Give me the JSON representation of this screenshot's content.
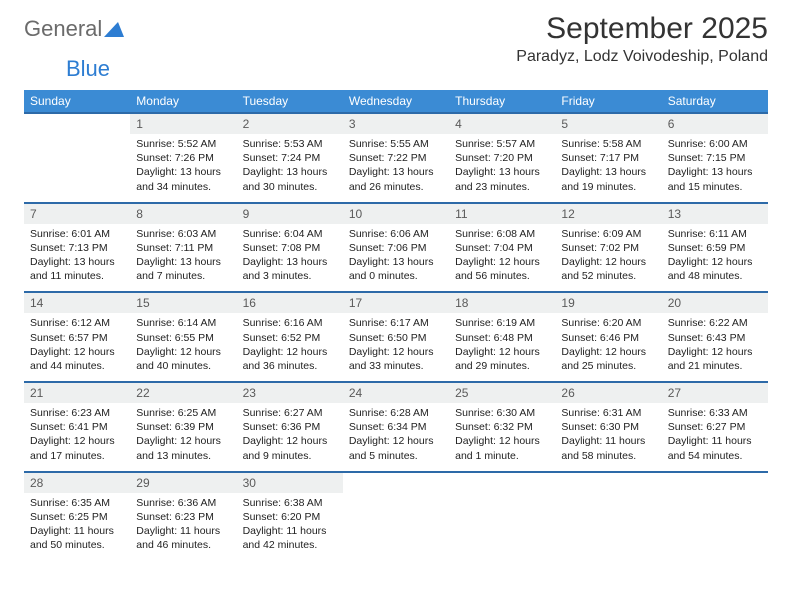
{
  "logo": {
    "text1": "General",
    "text2": "Blue"
  },
  "header": {
    "month": "September 2025",
    "location": "Paradyz, Lodz Voivodeship, Poland"
  },
  "columns": [
    "Sunday",
    "Monday",
    "Tuesday",
    "Wednesday",
    "Thursday",
    "Friday",
    "Saturday"
  ],
  "colors": {
    "header_bg": "#3b8bd4",
    "header_text": "#ffffff",
    "row_border": "#2d6aa8",
    "daynum_bg": "#eef0f0",
    "daynum_text": "#5a5a5a",
    "body_text": "#222222",
    "logo_gray": "#6b6b6b",
    "logo_blue": "#2d7dd2"
  },
  "weeks": [
    [
      {
        "empty": true
      },
      {
        "n": "1",
        "sunrise": "Sunrise: 5:52 AM",
        "sunset": "Sunset: 7:26 PM",
        "daylight": "Daylight: 13 hours and 34 minutes."
      },
      {
        "n": "2",
        "sunrise": "Sunrise: 5:53 AM",
        "sunset": "Sunset: 7:24 PM",
        "daylight": "Daylight: 13 hours and 30 minutes."
      },
      {
        "n": "3",
        "sunrise": "Sunrise: 5:55 AM",
        "sunset": "Sunset: 7:22 PM",
        "daylight": "Daylight: 13 hours and 26 minutes."
      },
      {
        "n": "4",
        "sunrise": "Sunrise: 5:57 AM",
        "sunset": "Sunset: 7:20 PM",
        "daylight": "Daylight: 13 hours and 23 minutes."
      },
      {
        "n": "5",
        "sunrise": "Sunrise: 5:58 AM",
        "sunset": "Sunset: 7:17 PM",
        "daylight": "Daylight: 13 hours and 19 minutes."
      },
      {
        "n": "6",
        "sunrise": "Sunrise: 6:00 AM",
        "sunset": "Sunset: 7:15 PM",
        "daylight": "Daylight: 13 hours and 15 minutes."
      }
    ],
    [
      {
        "n": "7",
        "sunrise": "Sunrise: 6:01 AM",
        "sunset": "Sunset: 7:13 PM",
        "daylight": "Daylight: 13 hours and 11 minutes."
      },
      {
        "n": "8",
        "sunrise": "Sunrise: 6:03 AM",
        "sunset": "Sunset: 7:11 PM",
        "daylight": "Daylight: 13 hours and 7 minutes."
      },
      {
        "n": "9",
        "sunrise": "Sunrise: 6:04 AM",
        "sunset": "Sunset: 7:08 PM",
        "daylight": "Daylight: 13 hours and 3 minutes."
      },
      {
        "n": "10",
        "sunrise": "Sunrise: 6:06 AM",
        "sunset": "Sunset: 7:06 PM",
        "daylight": "Daylight: 13 hours and 0 minutes."
      },
      {
        "n": "11",
        "sunrise": "Sunrise: 6:08 AM",
        "sunset": "Sunset: 7:04 PM",
        "daylight": "Daylight: 12 hours and 56 minutes."
      },
      {
        "n": "12",
        "sunrise": "Sunrise: 6:09 AM",
        "sunset": "Sunset: 7:02 PM",
        "daylight": "Daylight: 12 hours and 52 minutes."
      },
      {
        "n": "13",
        "sunrise": "Sunrise: 6:11 AM",
        "sunset": "Sunset: 6:59 PM",
        "daylight": "Daylight: 12 hours and 48 minutes."
      }
    ],
    [
      {
        "n": "14",
        "sunrise": "Sunrise: 6:12 AM",
        "sunset": "Sunset: 6:57 PM",
        "daylight": "Daylight: 12 hours and 44 minutes."
      },
      {
        "n": "15",
        "sunrise": "Sunrise: 6:14 AM",
        "sunset": "Sunset: 6:55 PM",
        "daylight": "Daylight: 12 hours and 40 minutes."
      },
      {
        "n": "16",
        "sunrise": "Sunrise: 6:16 AM",
        "sunset": "Sunset: 6:52 PM",
        "daylight": "Daylight: 12 hours and 36 minutes."
      },
      {
        "n": "17",
        "sunrise": "Sunrise: 6:17 AM",
        "sunset": "Sunset: 6:50 PM",
        "daylight": "Daylight: 12 hours and 33 minutes."
      },
      {
        "n": "18",
        "sunrise": "Sunrise: 6:19 AM",
        "sunset": "Sunset: 6:48 PM",
        "daylight": "Daylight: 12 hours and 29 minutes."
      },
      {
        "n": "19",
        "sunrise": "Sunrise: 6:20 AM",
        "sunset": "Sunset: 6:46 PM",
        "daylight": "Daylight: 12 hours and 25 minutes."
      },
      {
        "n": "20",
        "sunrise": "Sunrise: 6:22 AM",
        "sunset": "Sunset: 6:43 PM",
        "daylight": "Daylight: 12 hours and 21 minutes."
      }
    ],
    [
      {
        "n": "21",
        "sunrise": "Sunrise: 6:23 AM",
        "sunset": "Sunset: 6:41 PM",
        "daylight": "Daylight: 12 hours and 17 minutes."
      },
      {
        "n": "22",
        "sunrise": "Sunrise: 6:25 AM",
        "sunset": "Sunset: 6:39 PM",
        "daylight": "Daylight: 12 hours and 13 minutes."
      },
      {
        "n": "23",
        "sunrise": "Sunrise: 6:27 AM",
        "sunset": "Sunset: 6:36 PM",
        "daylight": "Daylight: 12 hours and 9 minutes."
      },
      {
        "n": "24",
        "sunrise": "Sunrise: 6:28 AM",
        "sunset": "Sunset: 6:34 PM",
        "daylight": "Daylight: 12 hours and 5 minutes."
      },
      {
        "n": "25",
        "sunrise": "Sunrise: 6:30 AM",
        "sunset": "Sunset: 6:32 PM",
        "daylight": "Daylight: 12 hours and 1 minute."
      },
      {
        "n": "26",
        "sunrise": "Sunrise: 6:31 AM",
        "sunset": "Sunset: 6:30 PM",
        "daylight": "Daylight: 11 hours and 58 minutes."
      },
      {
        "n": "27",
        "sunrise": "Sunrise: 6:33 AM",
        "sunset": "Sunset: 6:27 PM",
        "daylight": "Daylight: 11 hours and 54 minutes."
      }
    ],
    [
      {
        "n": "28",
        "sunrise": "Sunrise: 6:35 AM",
        "sunset": "Sunset: 6:25 PM",
        "daylight": "Daylight: 11 hours and 50 minutes."
      },
      {
        "n": "29",
        "sunrise": "Sunrise: 6:36 AM",
        "sunset": "Sunset: 6:23 PM",
        "daylight": "Daylight: 11 hours and 46 minutes."
      },
      {
        "n": "30",
        "sunrise": "Sunrise: 6:38 AM",
        "sunset": "Sunset: 6:20 PM",
        "daylight": "Daylight: 11 hours and 42 minutes."
      },
      {
        "empty": true
      },
      {
        "empty": true
      },
      {
        "empty": true
      },
      {
        "empty": true
      }
    ]
  ]
}
